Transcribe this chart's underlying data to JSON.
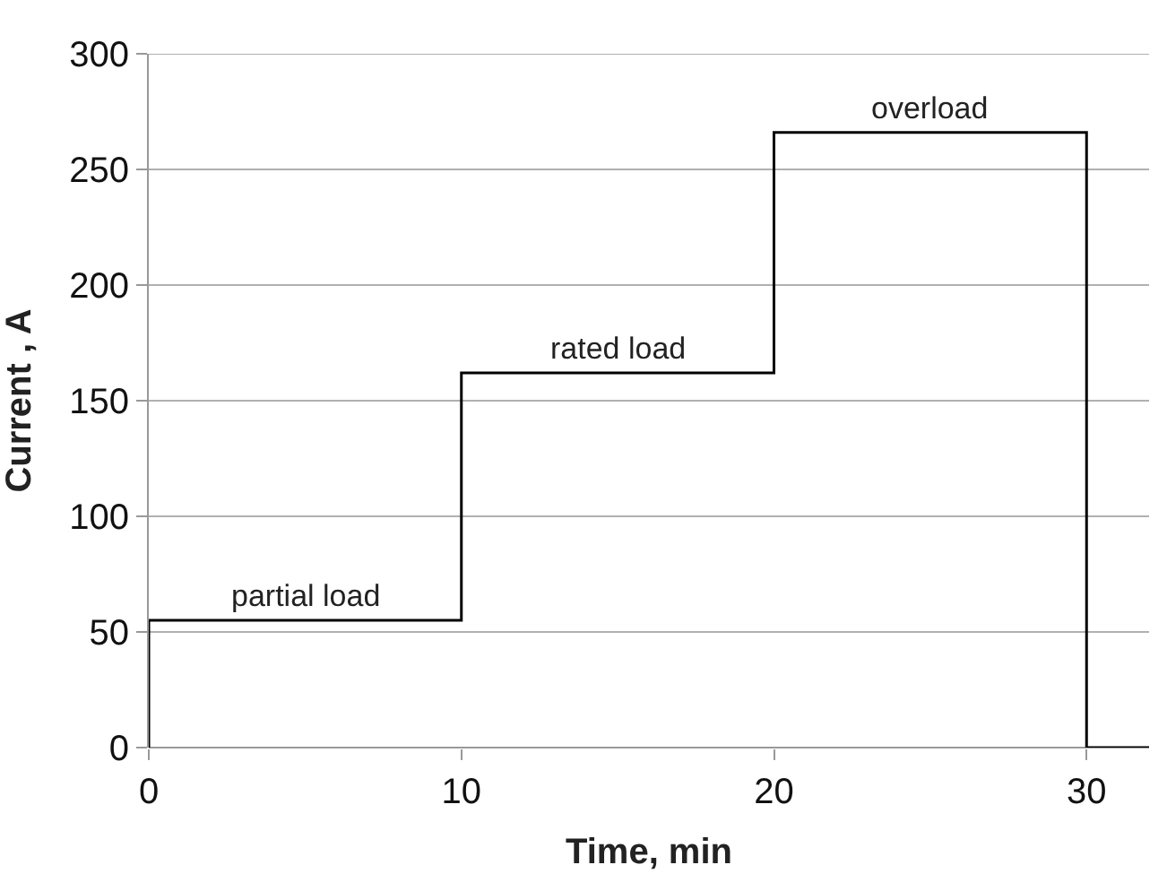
{
  "chart_data": {
    "type": "step",
    "xlabel": "Time, min",
    "ylabel": "Current , A",
    "x": [
      0,
      0,
      10,
      20,
      30,
      32
    ],
    "series": [
      {
        "color": "#000000",
        "values": [
          0,
          55,
          162,
          266,
          0,
          0
        ]
      }
    ],
    "xlim": [
      0,
      32
    ],
    "xticks": [
      0,
      10,
      20,
      30
    ],
    "ylim": [
      0,
      300
    ],
    "yticks": [
      0,
      50,
      100,
      150,
      200,
      250,
      300
    ],
    "grid": "y",
    "marker": "none",
    "line_style": "solid",
    "annotations": [
      {
        "text": "partial load",
        "x": 5,
        "y": 55
      },
      {
        "text": "rated load",
        "x": 15,
        "y": 162
      },
      {
        "text": "overload",
        "x": 25,
        "y": 266
      }
    ]
  }
}
